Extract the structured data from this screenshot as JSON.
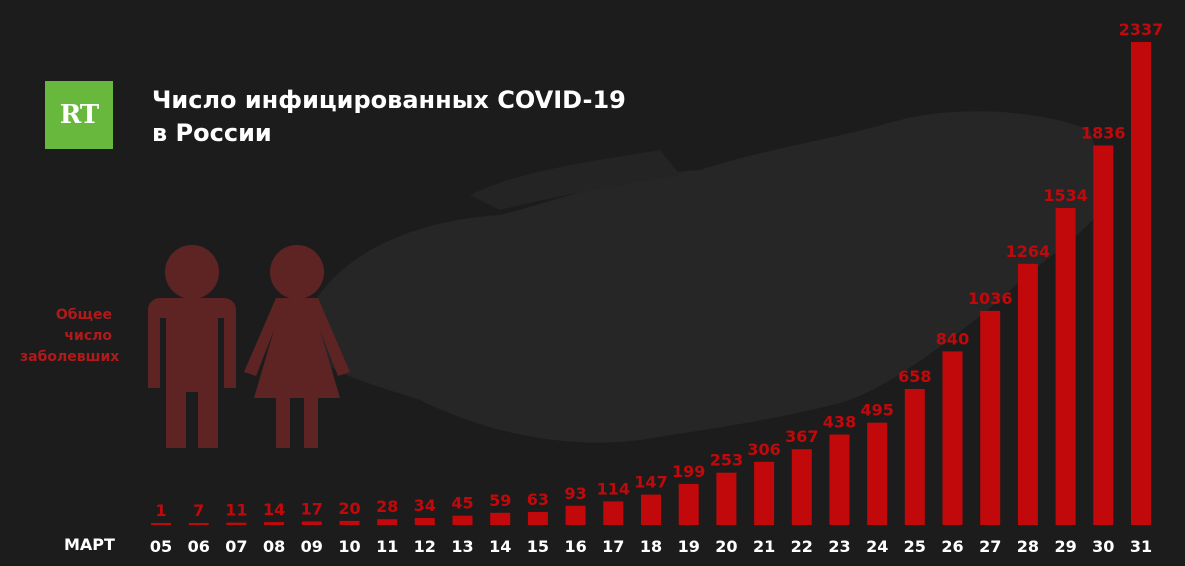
{
  "logo": {
    "text": "RT",
    "color": "#69b83e"
  },
  "title": {
    "line1": "Число инфицированных COVID-19",
    "line2": "в России"
  },
  "side_label": {
    "line1": "Общее",
    "line2": "число",
    "line3": "заболевших"
  },
  "month_label": "МАРТ",
  "colors": {
    "bar": "#c1090b",
    "value_label": "#c1090b",
    "tick_label": "#ffffff",
    "background": "#1c1c1d",
    "figure": "#5e2424"
  },
  "icons": [
    "male-figure-icon",
    "female-figure-icon",
    "russia-map-background"
  ],
  "chart_data": {
    "type": "bar",
    "categories": [
      "05",
      "06",
      "07",
      "08",
      "09",
      "10",
      "11",
      "12",
      "13",
      "14",
      "15",
      "16",
      "17",
      "18",
      "19",
      "20",
      "21",
      "22",
      "23",
      "24",
      "25",
      "26",
      "27",
      "28",
      "29",
      "30",
      "31"
    ],
    "values": [
      1,
      7,
      11,
      14,
      17,
      20,
      28,
      34,
      45,
      59,
      63,
      93,
      114,
      147,
      199,
      253,
      306,
      367,
      438,
      495,
      658,
      840,
      1036,
      1264,
      1534,
      1836,
      2337
    ],
    "title": "Число инфицированных COVID-19 в России",
    "xlabel": "МАРТ",
    "ylabel": "Общее число заболевших",
    "ylim": [
      0,
      2337
    ],
    "grid": false,
    "legend": "none"
  }
}
